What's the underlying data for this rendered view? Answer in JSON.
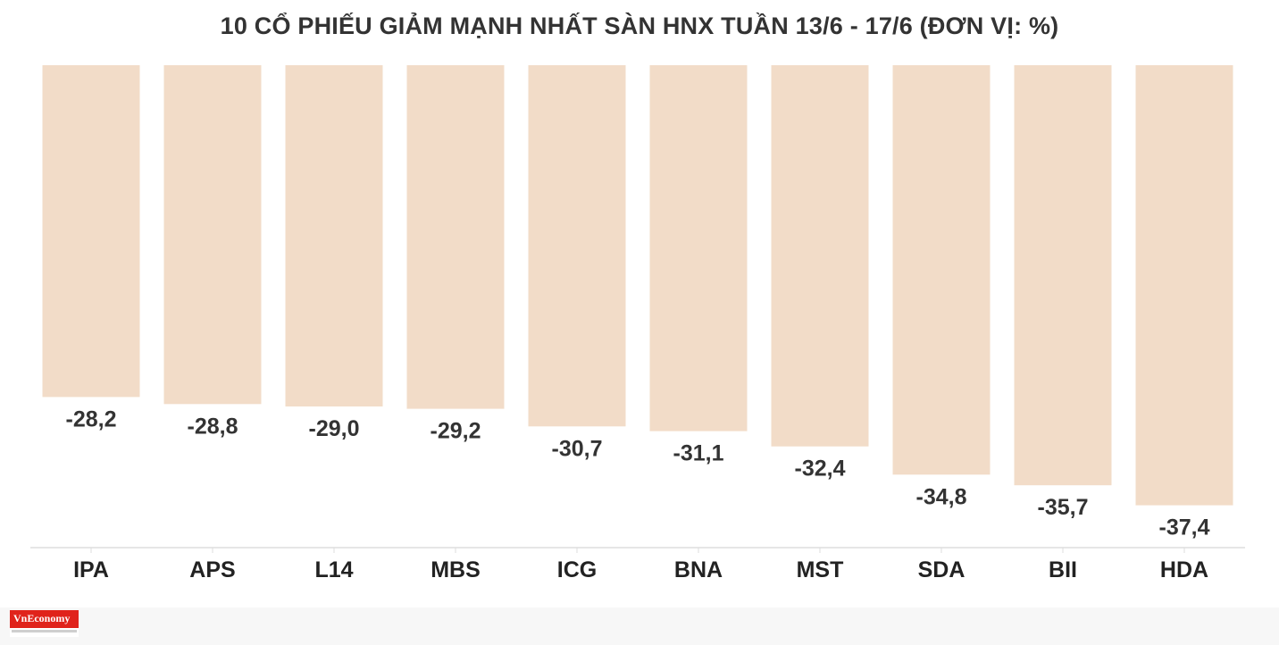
{
  "colors": {
    "bar": "#f2dcc8",
    "axis": "#dddddd",
    "text": "#333333",
    "brand": "#e0231b"
  },
  "chart_data": {
    "type": "bar",
    "title": "10 CỔ PHIẾU GIẢM MẠNH NHẤT SÀN HNX TUẦN 13/6 - 17/6 (ĐƠN VỊ: %)",
    "xlabel": "",
    "ylabel": "",
    "categories": [
      "IPA",
      "APS",
      "L14",
      "MBS",
      "ICG",
      "BNA",
      "MST",
      "SDA",
      "BII",
      "HDA"
    ],
    "values": [
      -28.2,
      -28.8,
      -29.0,
      -29.2,
      -30.7,
      -31.1,
      -32.4,
      -34.8,
      -35.7,
      -37.4
    ],
    "value_labels": [
      "-28,2",
      "-28,8",
      "-29,0",
      "-29,2",
      "-30,7",
      "-31,1",
      "-32,4",
      "-34,8",
      "-35,7",
      "-37,4"
    ],
    "ylim": [
      -41,
      0
    ],
    "grid": false,
    "legend": "none",
    "data_labels": "below-bar"
  },
  "brand": {
    "logo_text": "VnEconomy"
  }
}
